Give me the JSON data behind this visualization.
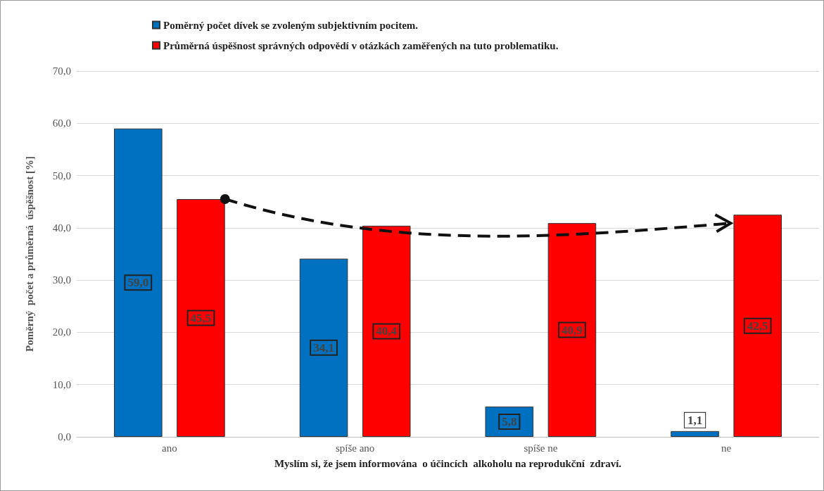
{
  "chart_data": {
    "type": "bar",
    "xlabel": "Myslím si, že jsem informována  o účincích  alkoholu na reprodukční  zdraví.",
    "ylabel": "Poměrný  počet a průměrná  úspěšnost [%]",
    "categories": [
      "ano",
      "spíše ano",
      "spíše ne",
      "ne"
    ],
    "series": [
      {
        "name": "Poměrný počet dívek se zvoleným subjektivním pocitem.",
        "color": "#0070c0",
        "values": [
          59.0,
          34.1,
          5.8,
          1.1
        ],
        "value_labels": [
          "59,0",
          "34,1",
          "5,8",
          "1,1"
        ]
      },
      {
        "name": "Průměrná úspěšnost správných odpovědí v otázkách zaměřených na tuto problematiku.",
        "color": "#ff0000",
        "values": [
          45.5,
          40.4,
          40.9,
          42.5
        ],
        "value_labels": [
          "45,5",
          "40,4",
          "40,9",
          "42,5"
        ]
      }
    ],
    "ylim": [
      0,
      70
    ],
    "yticks": [
      {
        "value": 0,
        "label": "0,0"
      },
      {
        "value": 10,
        "label": "10,0"
      },
      {
        "value": 20,
        "label": "20,0"
      },
      {
        "value": 30,
        "label": "30,0"
      },
      {
        "value": 40,
        "label": "40,0"
      },
      {
        "value": 50,
        "label": "50,0"
      },
      {
        "value": 60,
        "label": "60,0"
      },
      {
        "value": 70,
        "label": "70,0"
      }
    ],
    "grid": "y",
    "legend": "top left"
  }
}
